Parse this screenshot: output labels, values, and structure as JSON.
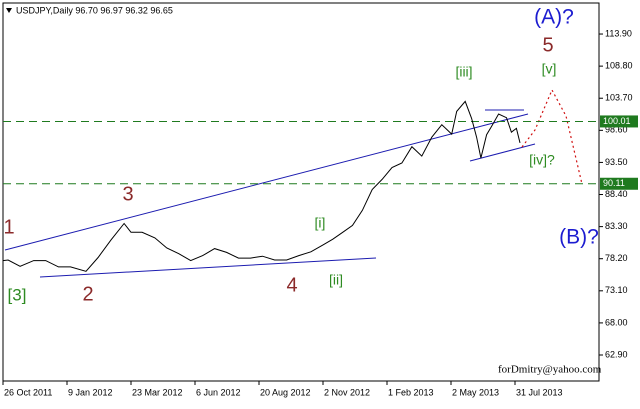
{
  "chart_data": {
    "type": "line",
    "title": "USDJPY,Daily 96.70 96.97 96.32 96.65",
    "x": [
      "26 Oct 2011",
      "1 Nov 2011",
      "15 Nov 2011",
      "1 Dec 2011",
      "15 Dec 2011",
      "30 Dec 2011",
      "13 Jan 2012",
      "31 Jan 2012",
      "14 Feb 2012",
      "29 Feb 2012",
      "15 Mar 2012",
      "23 Mar 2012",
      "5 Apr 2012",
      "20 Apr 2012",
      "4 May 2012",
      "18 May 2012",
      "1 Jun 2012",
      "15 Jun 2012",
      "29 Jun 2012",
      "13 Jul 2012",
      "27 Jul 2012",
      "10 Aug 2012",
      "24 Aug 2012",
      "7 Sep 2012",
      "21 Sep 2012",
      "5 Oct 2012",
      "19 Oct 2012",
      "2 Nov 2012",
      "16 Nov 2012",
      "30 Nov 2012",
      "14 Dec 2012",
      "28 Dec 2012",
      "11 Jan 2013",
      "25 Jan 2013",
      "8 Feb 2013",
      "22 Feb 2013",
      "8 Mar 2013",
      "22 Mar 2013",
      "5 Apr 2013",
      "19 Apr 2013",
      "3 May 2013",
      "10 May 2013",
      "22 May 2013",
      "31 May 2013",
      "7 Jun 2013",
      "13 Jun 2013",
      "21 Jun 2013",
      "28 Jun 2013",
      "8 Jul 2013",
      "19 Jul 2013",
      "26 Jul 2013",
      "2 Aug 2013",
      "7 Aug 2013"
    ],
    "series": [
      {
        "name": "USDJPY",
        "color": "#000000",
        "values": [
          77.9,
          78.0,
          77.0,
          77.9,
          77.9,
          76.9,
          76.9,
          76.2,
          78.4,
          81.2,
          83.8,
          82.4,
          82.4,
          81.5,
          79.9,
          79.0,
          77.9,
          78.7,
          79.8,
          79.2,
          78.3,
          78.3,
          78.6,
          78.0,
          78.0,
          78.7,
          79.3,
          80.4,
          81.3,
          82.4,
          83.5,
          85.9,
          89.2,
          90.8,
          92.7,
          93.4,
          96.0,
          94.5,
          97.5,
          99.5,
          98.0,
          101.6,
          103.2,
          100.5,
          97.5,
          94.2,
          97.9,
          99.2,
          101.2,
          100.6,
          98.3,
          98.9,
          96.6
        ]
      }
    ],
    "xticks": [
      "26 Oct 2011",
      "9 Jan 2012",
      "23 Mar 2012",
      "6 Jun 2012",
      "20 Aug 2012",
      "2 Nov 2012",
      "1 Feb 2013",
      "2 May 2013",
      "31 Jul 2013"
    ],
    "ylim": [
      58.77,
      118.83
    ],
    "yticks": [
      {
        "value": 113.9,
        "label": "113.90"
      },
      {
        "value": 108.8,
        "label": "108.80"
      },
      {
        "value": 103.7,
        "label": "103.70"
      },
      {
        "value": 98.6,
        "label": "98.60"
      },
      {
        "value": 93.5,
        "label": "93.50"
      },
      {
        "value": 88.4,
        "label": "88.40"
      },
      {
        "value": 83.3,
        "label": "83.30"
      },
      {
        "value": 78.2,
        "label": "78.20"
      },
      {
        "value": 73.1,
        "label": "73.10"
      },
      {
        "value": 68.0,
        "label": "68.00"
      },
      {
        "value": 62.9,
        "label": "62.90"
      }
    ],
    "levels": [
      100.01,
      90.11
    ],
    "level_color": "#1f7a1f",
    "grid": false,
    "annotations": [
      "1",
      "2",
      "3",
      "4",
      "5",
      "[3]",
      "[i]",
      "[ii]",
      "[iii]",
      "[iv]?",
      "[v]",
      "(A)?",
      "(B)?"
    ],
    "footer": "forDmitry@yahoo.com"
  }
}
